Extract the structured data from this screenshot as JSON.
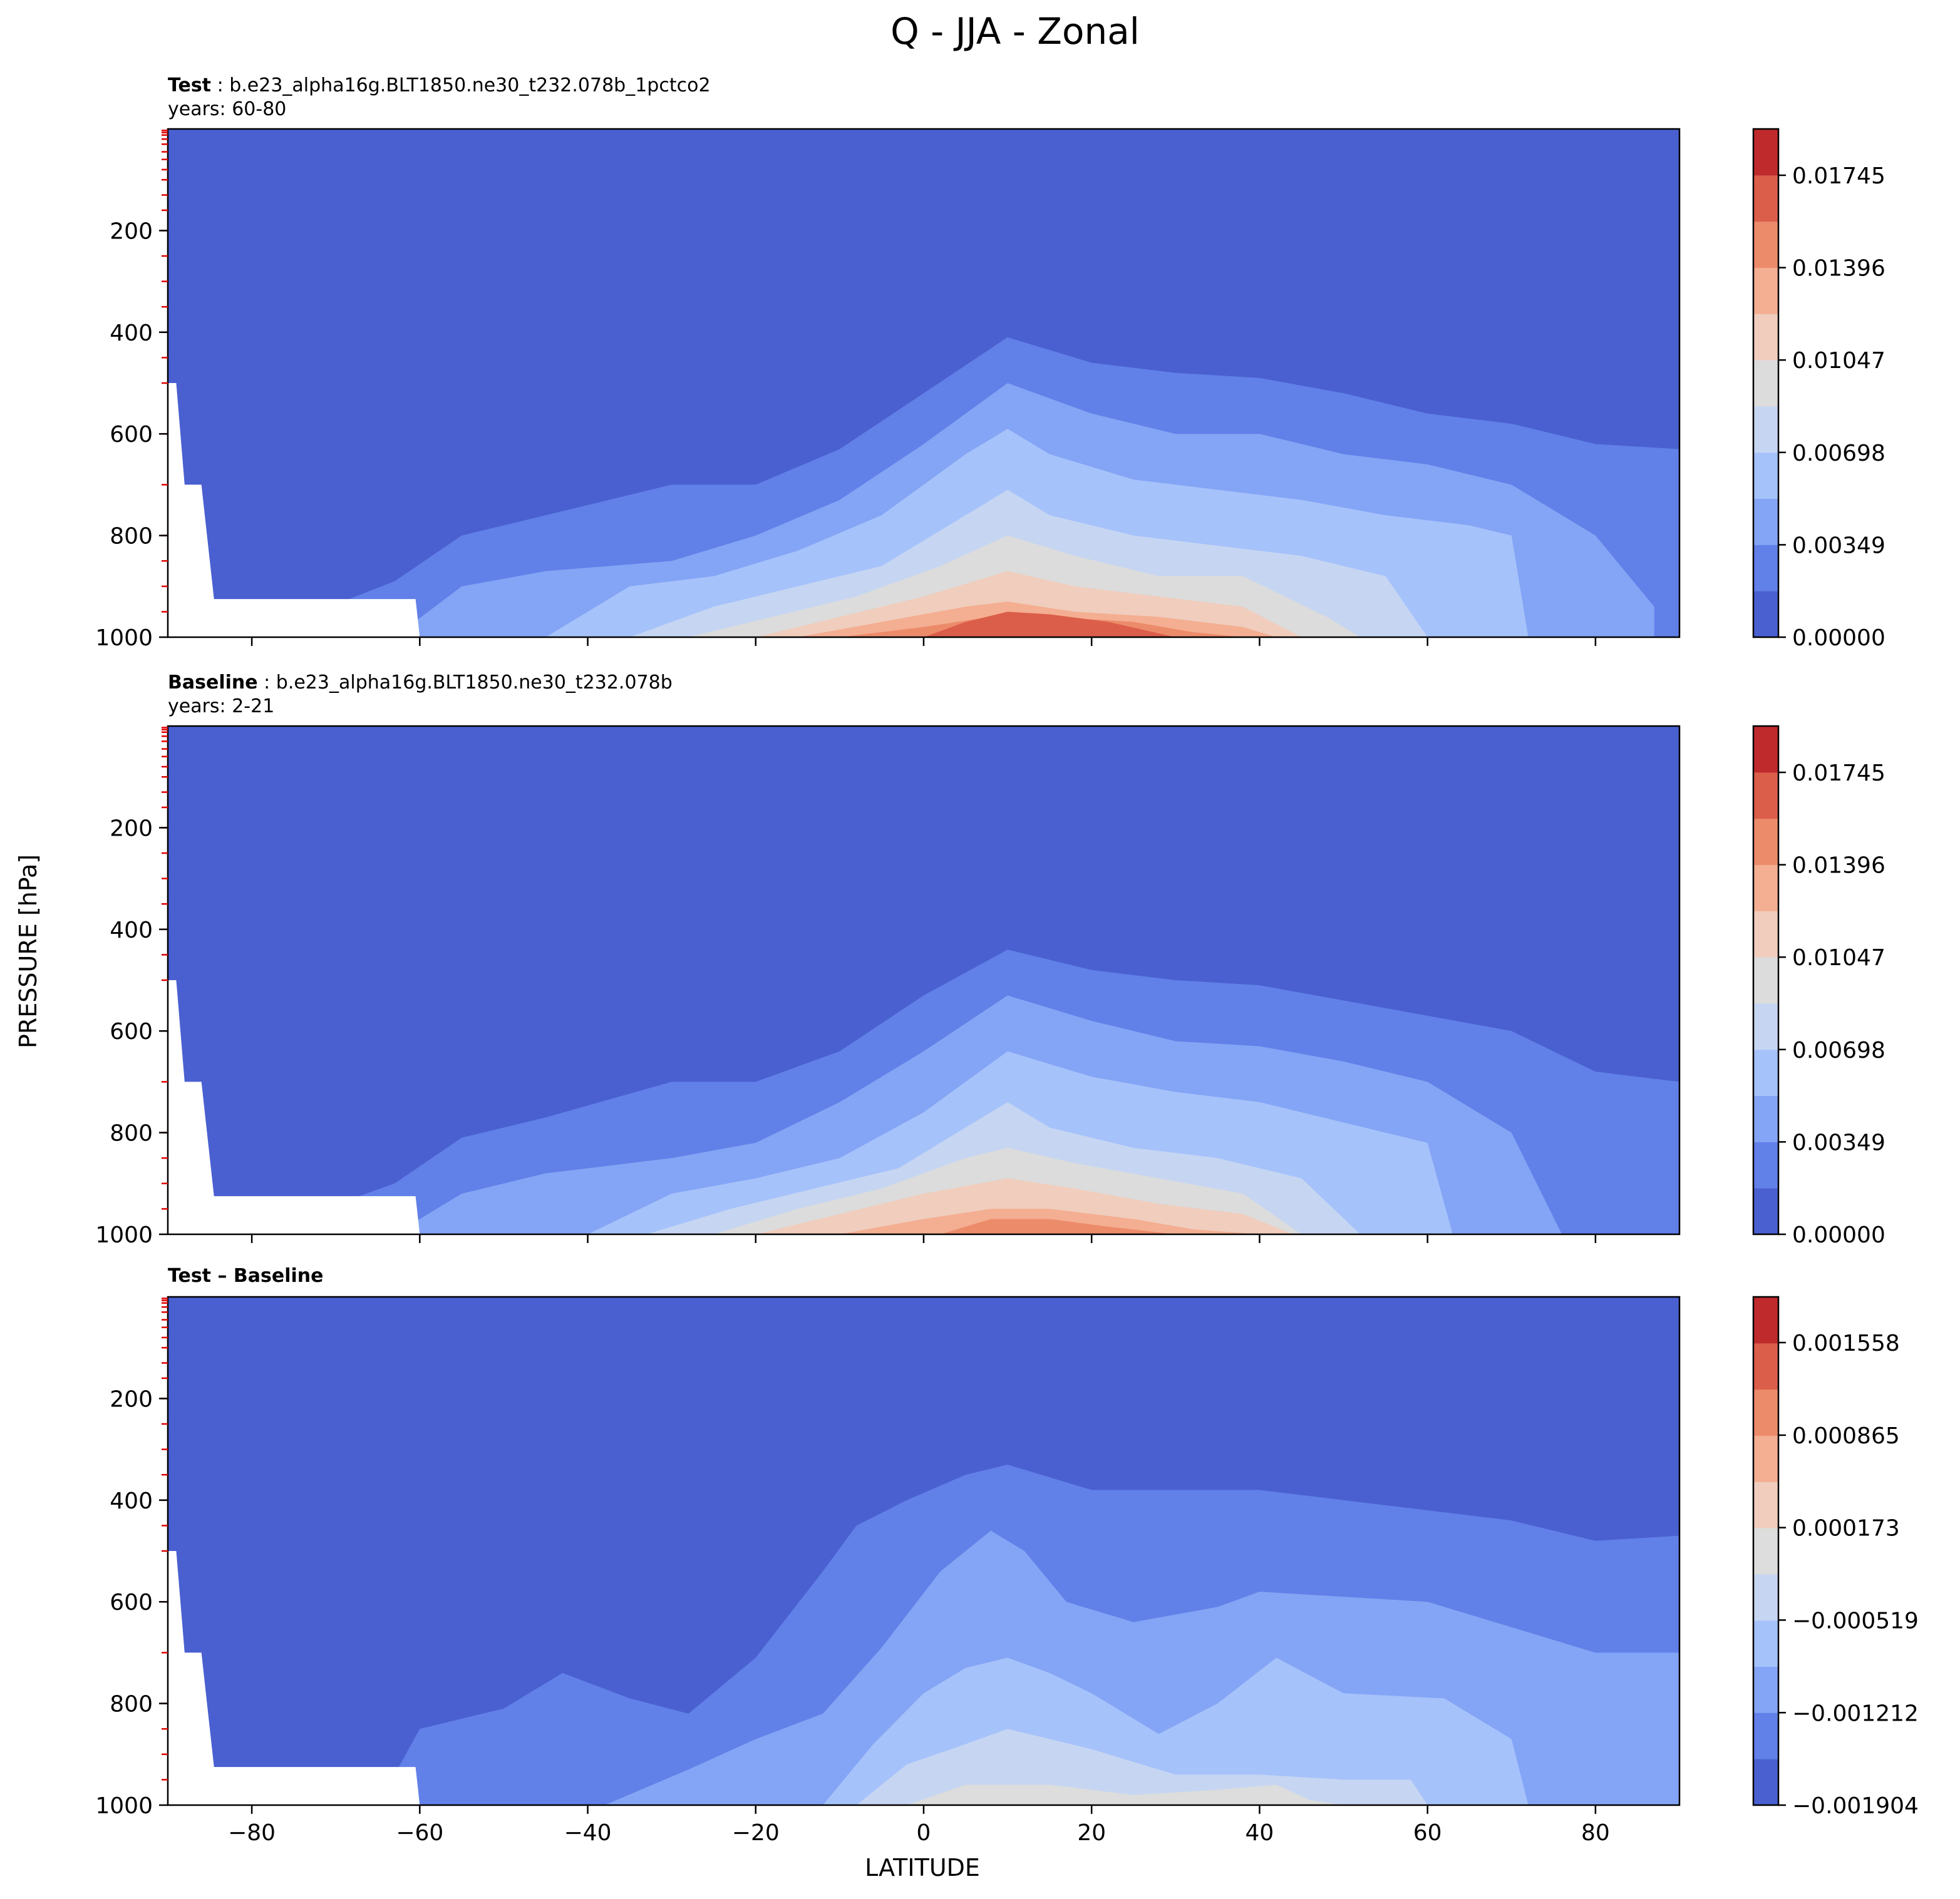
{
  "figure": {
    "title": "Q - JJA - Zonal",
    "xlabel": "LATITUDE",
    "ylabel": "PRESSURE [hPa]"
  },
  "chart_data": [
    {
      "type": "heatmap",
      "panel": "test",
      "title_bold": "Test",
      "title_rest": " : b.e23_alpha16g.BLT1850.ne30_t232.078b_1pctco2",
      "subtitle": "years: 60-80",
      "xlim": [
        -90,
        90
      ],
      "ylim": [
        1000,
        0
      ],
      "x_ticks": [
        -80,
        -60,
        -40,
        -20,
        0,
        20,
        40,
        60,
        80
      ],
      "y_ticks": [
        200,
        400,
        600,
        800,
        1000
      ],
      "colorbar_ticks": [
        "0.00000",
        "0.00349",
        "0.00698",
        "0.01047",
        "0.01396",
        "0.01745"
      ],
      "colorbar_min": 0.0,
      "colorbar_max": 0.0192,
      "levels": 11,
      "colorbar_colors": [
        "#4a60d0",
        "#6180e8",
        "#84a4f5",
        "#a6c2fb",
        "#c6d6f2",
        "#dcdcdc",
        "#f0cdbd",
        "#f4ae91",
        "#ec8b6a",
        "#db5e4a",
        "#bf2a2d"
      ],
      "contour_tops_by_level": [
        {
          "x": [
            -90,
            -80,
            -60,
            -40,
            -20,
            -10,
            0,
            5,
            10,
            20,
            30,
            40,
            50,
            60,
            70,
            80,
            90
          ],
          "y": [
            1000,
            1000,
            1000,
            1000,
            1000,
            1000,
            1000,
            1000,
            1000,
            1000,
            1000,
            1000,
            1000,
            1000,
            1000,
            1000,
            1000
          ]
        },
        {
          "x": [
            -90,
            -80,
            -63,
            -55,
            -45,
            -30,
            -20,
            -10,
            0,
            10,
            20,
            30,
            40,
            50,
            60,
            70,
            80,
            90
          ],
          "y": [
            1000,
            1000,
            890,
            800,
            760,
            700,
            700,
            630,
            520,
            410,
            460,
            480,
            490,
            520,
            560,
            580,
            620,
            630
          ]
        },
        {
          "x": [
            -63,
            -55,
            -45,
            -30,
            -20,
            -10,
            0,
            10,
            20,
            30,
            40,
            50,
            60,
            70,
            80,
            87
          ],
          "y": [
            1000,
            900,
            870,
            850,
            800,
            730,
            620,
            500,
            560,
            600,
            600,
            640,
            660,
            700,
            800,
            940
          ]
        },
        {
          "x": [
            -45,
            -35,
            -25,
            -15,
            -5,
            5,
            10,
            15,
            25,
            35,
            45,
            55,
            65,
            70,
            72
          ],
          "y": [
            1000,
            900,
            880,
            830,
            760,
            640,
            590,
            640,
            690,
            710,
            730,
            760,
            780,
            800,
            1000
          ]
        },
        {
          "x": [
            -35,
            -25,
            -15,
            -5,
            5,
            10,
            15,
            25,
            35,
            45,
            55,
            60
          ],
          "y": [
            1000,
            940,
            900,
            860,
            760,
            710,
            760,
            800,
            820,
            840,
            880,
            1000
          ]
        },
        {
          "x": [
            -28,
            -18,
            -8,
            2,
            10,
            18,
            28,
            38,
            48,
            52
          ],
          "y": [
            1000,
            960,
            920,
            860,
            800,
            840,
            880,
            880,
            960,
            1000
          ]
        },
        {
          "x": [
            -20,
            -10,
            0,
            10,
            18,
            28,
            38,
            45
          ],
          "y": [
            1000,
            960,
            920,
            870,
            900,
            920,
            940,
            1000
          ]
        },
        {
          "x": [
            -15,
            -5,
            5,
            10,
            18,
            28,
            38,
            42
          ],
          "y": [
            1000,
            970,
            940,
            930,
            950,
            960,
            980,
            1000
          ]
        },
        {
          "x": [
            -10,
            0,
            8,
            15,
            25,
            32,
            38
          ],
          "y": [
            1000,
            980,
            960,
            960,
            970,
            990,
            1000
          ]
        },
        {
          "x": [
            0,
            5,
            10,
            15,
            22,
            30
          ],
          "y": [
            1000,
            970,
            950,
            955,
            970,
            1000
          ]
        }
      ]
    },
    {
      "type": "heatmap",
      "panel": "baseline",
      "title_bold": "Baseline",
      "title_rest": " : b.e23_alpha16g.BLT1850.ne30_t232.078b",
      "subtitle": "years: 2-21",
      "xlim": [
        -90,
        90
      ],
      "ylim": [
        1000,
        0
      ],
      "x_ticks": [
        -80,
        -60,
        -40,
        -20,
        0,
        20,
        40,
        60,
        80
      ],
      "y_ticks": [
        200,
        400,
        600,
        800,
        1000
      ],
      "colorbar_ticks": [
        "0.00000",
        "0.00349",
        "0.00698",
        "0.01047",
        "0.01396",
        "0.01745"
      ],
      "colorbar_min": 0.0,
      "colorbar_max": 0.0192,
      "levels": 11,
      "colorbar_colors": [
        "#4a60d0",
        "#6180e8",
        "#84a4f5",
        "#a6c2fb",
        "#c6d6f2",
        "#dcdcdc",
        "#f0cdbd",
        "#f4ae91",
        "#ec8b6a",
        "#db5e4a",
        "#bf2a2d"
      ],
      "contour_tops_by_level": [
        {
          "x": [
            -90,
            -80,
            -60,
            -40,
            -20,
            -10,
            0,
            5,
            10,
            20,
            30,
            40,
            50,
            60,
            70,
            80,
            90
          ],
          "y": [
            1000,
            1000,
            1000,
            1000,
            1000,
            1000,
            1000,
            1000,
            1000,
            1000,
            1000,
            1000,
            1000,
            1000,
            1000,
            1000,
            1000
          ]
        },
        {
          "x": [
            -90,
            -80,
            -63,
            -55,
            -45,
            -30,
            -20,
            -10,
            0,
            10,
            20,
            30,
            40,
            50,
            60,
            70,
            80,
            90
          ],
          "y": [
            1000,
            1000,
            900,
            810,
            770,
            700,
            700,
            640,
            530,
            440,
            480,
            500,
            510,
            540,
            570,
            600,
            680,
            700
          ]
        },
        {
          "x": [
            -63,
            -55,
            -45,
            -30,
            -20,
            -10,
            0,
            10,
            20,
            30,
            40,
            50,
            60,
            70,
            76
          ],
          "y": [
            1000,
            920,
            880,
            850,
            820,
            740,
            640,
            530,
            580,
            620,
            630,
            660,
            700,
            800,
            1000
          ]
        },
        {
          "x": [
            -40,
            -30,
            -20,
            -10,
            0,
            10,
            20,
            30,
            40,
            50,
            60,
            63
          ],
          "y": [
            1000,
            920,
            890,
            850,
            760,
            640,
            690,
            720,
            740,
            780,
            820,
            1000
          ]
        },
        {
          "x": [
            -33,
            -23,
            -13,
            -3,
            5,
            10,
            15,
            25,
            35,
            45,
            52
          ],
          "y": [
            1000,
            950,
            910,
            870,
            790,
            740,
            790,
            830,
            850,
            890,
            1000
          ]
        },
        {
          "x": [
            -25,
            -15,
            -5,
            5,
            10,
            18,
            28,
            38,
            45
          ],
          "y": [
            1000,
            950,
            910,
            850,
            830,
            860,
            890,
            920,
            1000
          ]
        },
        {
          "x": [
            -20,
            -10,
            0,
            10,
            18,
            28,
            38,
            44
          ],
          "y": [
            1000,
            960,
            920,
            890,
            910,
            940,
            960,
            1000
          ]
        },
        {
          "x": [
            -10,
            0,
            8,
            15,
            25,
            32,
            40
          ],
          "y": [
            1000,
            970,
            950,
            950,
            970,
            990,
            1000
          ]
        },
        {
          "x": [
            2,
            8,
            15,
            22,
            30
          ],
          "y": [
            1000,
            970,
            970,
            985,
            1000
          ]
        }
      ]
    },
    {
      "type": "heatmap",
      "panel": "difference",
      "title_bold": "Test – Baseline",
      "xlim": [
        -90,
        90
      ],
      "ylim": [
        1000,
        0
      ],
      "x_ticks": [
        -80,
        -60,
        -40,
        -20,
        0,
        20,
        40,
        60,
        80
      ],
      "y_ticks": [
        200,
        400,
        600,
        800,
        1000
      ],
      "colorbar_ticks": [
        "−0.001904",
        "−0.001212",
        "−0.000519",
        "0.000173",
        "0.000865",
        "0.001558"
      ],
      "colorbar_min": -0.001904,
      "colorbar_max": 0.0019,
      "levels": 11,
      "colorbar_colors": [
        "#4a60d0",
        "#6180e8",
        "#84a4f5",
        "#a6c2fb",
        "#c6d6f2",
        "#dcdddc",
        "#f0cdbd",
        "#f4ae91",
        "#ec8b6a",
        "#db5e4a",
        "#bf2a2d"
      ],
      "contour_tops_by_level": [
        {
          "x": [
            -90,
            90
          ],
          "y": [
            1000,
            1000
          ]
        },
        {
          "x": [
            -65,
            -60,
            -50,
            -43,
            -35,
            -28,
            -20,
            -12,
            -8,
            -2,
            5,
            10,
            20,
            30,
            40,
            50,
            60,
            70,
            80,
            90
          ],
          "y": [
            1000,
            850,
            810,
            740,
            790,
            820,
            710,
            540,
            450,
            400,
            350,
            330,
            380,
            380,
            380,
            400,
            420,
            440,
            480,
            470
          ]
        },
        {
          "x": [
            -38,
            -28,
            -20,
            -12,
            -5,
            2,
            8,
            12,
            17,
            25,
            35,
            40,
            50,
            60,
            70,
            80,
            90
          ],
          "y": [
            1000,
            930,
            870,
            820,
            690,
            540,
            460,
            500,
            600,
            640,
            610,
            580,
            590,
            600,
            650,
            700,
            700
          ]
        },
        {
          "x": [
            -12,
            -6,
            0,
            5,
            10,
            15,
            20,
            28,
            35,
            42,
            50,
            62,
            70,
            72
          ],
          "y": [
            1000,
            880,
            780,
            730,
            710,
            740,
            780,
            860,
            800,
            710,
            780,
            790,
            870,
            1000
          ]
        },
        {
          "x": [
            -8,
            -2,
            5,
            10,
            20,
            30,
            40,
            50,
            58,
            60
          ],
          "y": [
            1000,
            920,
            880,
            850,
            890,
            940,
            940,
            950,
            950,
            1000
          ]
        },
        {
          "x": [
            -2,
            5,
            15,
            25,
            35,
            42,
            46,
            50
          ],
          "y": [
            1000,
            960,
            960,
            980,
            970,
            960,
            990,
            1000
          ]
        }
      ]
    }
  ]
}
